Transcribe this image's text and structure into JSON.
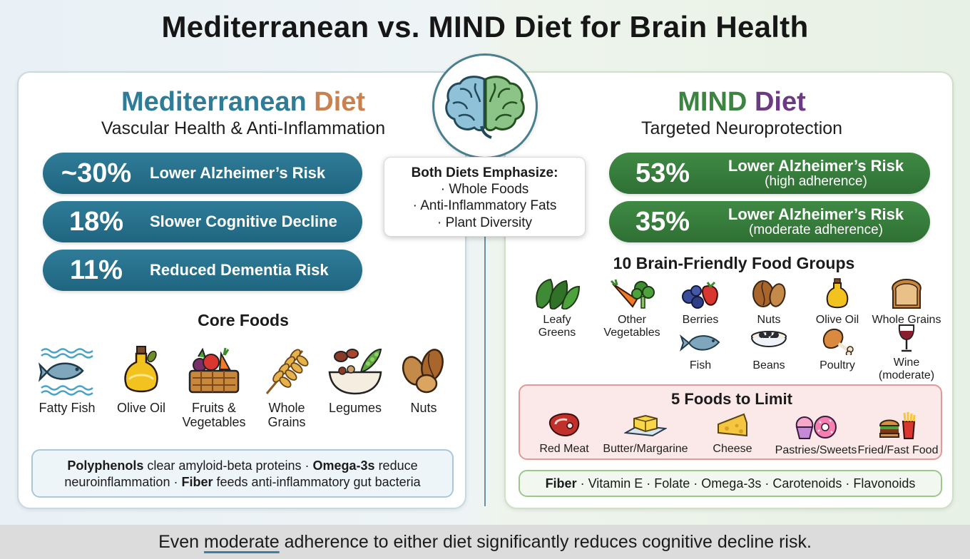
{
  "title": "Mediterranean vs. MIND Diet for Brain Health",
  "colors": {
    "med_blue": "#2f7c98",
    "med_accent": "#c9824f",
    "mind_green": "#3b8540",
    "mind_purple": "#6b3a82"
  },
  "mediterranean": {
    "title_a": "Mediterranean",
    "title_b": "Diet",
    "subtitle": "Vascular Health & Anti-Inflammation",
    "stats": [
      {
        "value": "~30%",
        "label": "Lower Alzheimer’s Risk"
      },
      {
        "value": "18%",
        "label": "Slower Cognitive Decline"
      },
      {
        "value": "11%",
        "label": "Reduced Dementia Risk"
      }
    ],
    "core_foods_heading": "Core Foods",
    "core_foods": [
      {
        "icon": "fish-icon",
        "label": "Fatty Fish"
      },
      {
        "icon": "olive-oil-icon",
        "label": "Olive Oil"
      },
      {
        "icon": "basket-icon",
        "label": "Fruits & Vegetables"
      },
      {
        "icon": "wheat-icon",
        "label": "Whole Grains"
      },
      {
        "icon": "legumes-icon",
        "label": "Legumes"
      },
      {
        "icon": "nuts-icon",
        "label": "Nuts"
      }
    ],
    "info": {
      "b1": "Polyphenols",
      "t1": " clear amyloid-beta proteins · ",
      "b2": "Omega-3s",
      "t2": " reduce neuroinflammation · ",
      "b3": "Fiber",
      "t3": " feeds anti-inflammatory gut bacteria"
    }
  },
  "both": {
    "heading": "Both Diets Emphasize:",
    "items": [
      "· Whole Foods",
      "· Anti-Inflammatory Fats",
      "· Plant Diversity"
    ]
  },
  "mind": {
    "title_a": "MIND",
    "title_b": "Diet",
    "subtitle": "Targeted Neuroprotection",
    "stats": [
      {
        "value": "53%",
        "label": "Lower Alzheimer’s Risk",
        "sub": "(high adherence)"
      },
      {
        "value": "35%",
        "label": "Lower Alzheimer’s Risk",
        "sub": "(moderate adherence)"
      }
    ],
    "groups_heading": "10 Brain-Friendly Food Groups",
    "groups": [
      {
        "icon": "leafy-greens-icon",
        "label": "Leafy Greens"
      },
      {
        "icon": "vegetables-icon",
        "label": "Other Vegetables"
      },
      {
        "icon": "berries-icon",
        "label": "Berries"
      },
      {
        "icon": "nuts-icon",
        "label": "Nuts"
      },
      {
        "icon": "olive-oil-icon",
        "label": "Olive Oil"
      },
      {
        "icon": "bread-icon",
        "label": "Whole Grains"
      },
      {
        "icon": "fish-icon",
        "label": "Fish"
      },
      {
        "icon": "beans-icon",
        "label": "Beans"
      },
      {
        "icon": "poultry-icon",
        "label": "Poultry"
      },
      {
        "icon": "wine-icon",
        "label": "Wine (moderate)"
      }
    ],
    "limit_heading": "5 Foods to Limit",
    "limit": [
      {
        "icon": "steak-icon",
        "label": "Red Meat"
      },
      {
        "icon": "butter-icon",
        "label": "Butter/Margarine"
      },
      {
        "icon": "cheese-icon",
        "label": "Cheese"
      },
      {
        "icon": "pastry-icon",
        "label": "Pastries/Sweets"
      },
      {
        "icon": "fast-food-icon",
        "label": "Fried/Fast Food"
      }
    ],
    "nutrients": {
      "bold": "Fiber",
      "rest": " · Vitamin E · Folate · Omega-3s · Carotenoids · Flavonoids"
    }
  },
  "footer": {
    "pre": "Even ",
    "highlight": "moderate",
    "post": " adherence to either diet significantly reduces cognitive decline risk."
  }
}
